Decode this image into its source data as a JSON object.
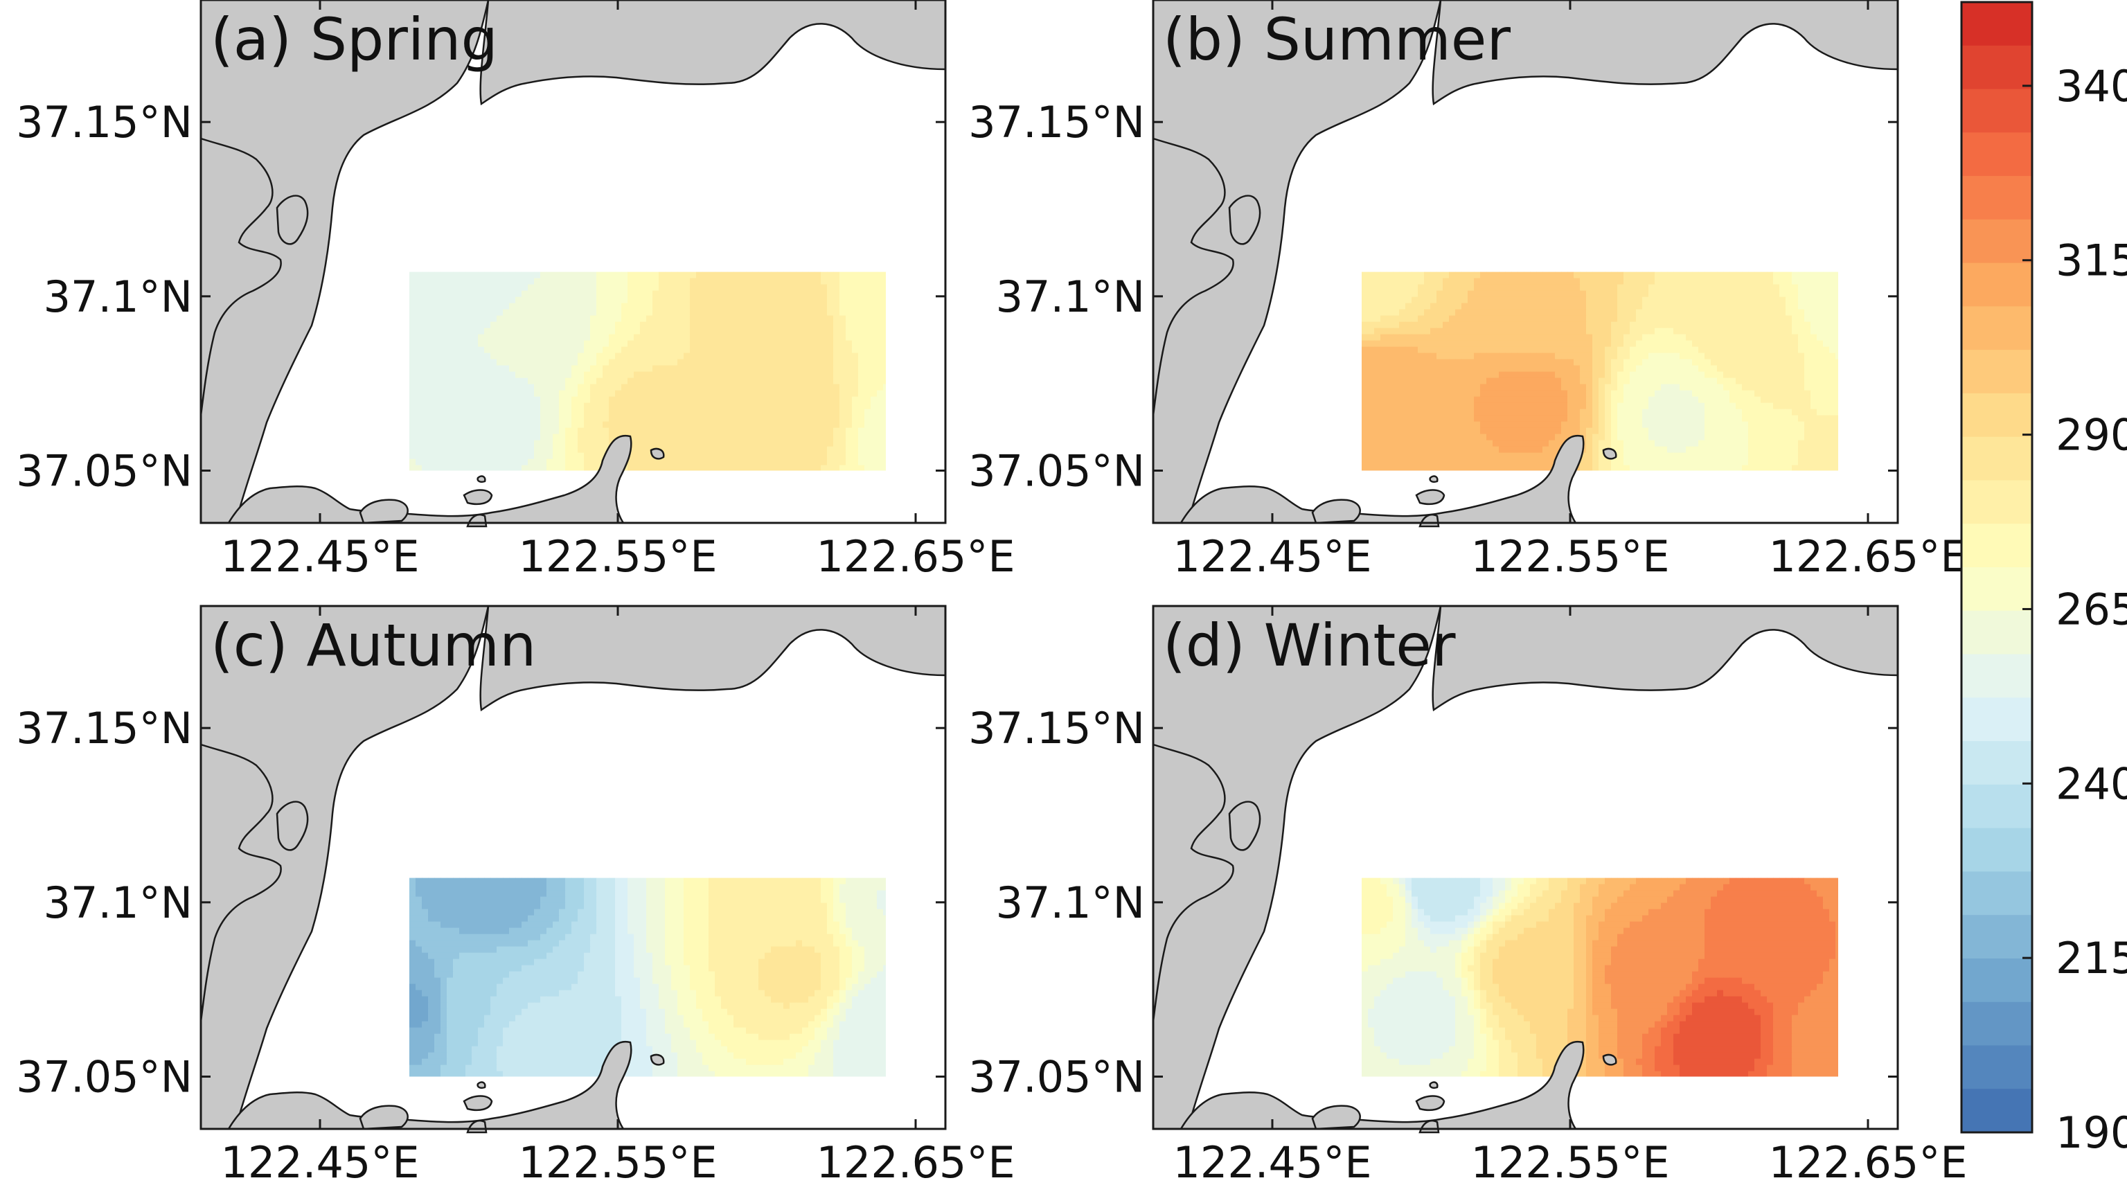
{
  "figure": {
    "panels": [
      {
        "id": "spring",
        "title": "(a) Spring",
        "lat_ticks": [
          "37.15°N",
          "37.1°N",
          "37.05°N"
        ],
        "lon_ticks": [
          "122.45°E",
          "122.55°E",
          "122.65°E"
        ],
        "base_value": 280,
        "field_hotspots": [
          {
            "lon": 122.505,
            "lat": 37.104,
            "value": 253
          },
          {
            "lon": 122.504,
            "lat": 37.068,
            "value": 252
          },
          {
            "lon": 122.52,
            "lat": 37.09,
            "value": 262
          },
          {
            "lon": 122.56,
            "lat": 37.065,
            "value": 285
          },
          {
            "lon": 122.605,
            "lat": 37.095,
            "value": 290
          },
          {
            "lon": 122.61,
            "lat": 37.065,
            "value": 287
          },
          {
            "lon": 122.645,
            "lat": 37.06,
            "value": 268
          },
          {
            "lon": 122.64,
            "lat": 37.1,
            "value": 272
          }
        ]
      },
      {
        "id": "summer",
        "title": "(b) Summer",
        "lat_ticks": [
          "37.15°N",
          "37.1°N",
          "37.05°N"
        ],
        "lon_ticks": [
          "122.45°E",
          "122.55°E",
          "122.65°E"
        ],
        "base_value": 286,
        "field_hotspots": [
          {
            "lon": 122.486,
            "lat": 37.072,
            "value": 309
          },
          {
            "lon": 122.535,
            "lat": 37.07,
            "value": 312
          },
          {
            "lon": 122.535,
            "lat": 37.095,
            "value": 298
          },
          {
            "lon": 122.585,
            "lat": 37.066,
            "value": 264
          },
          {
            "lon": 122.61,
            "lat": 37.09,
            "value": 282
          },
          {
            "lon": 122.64,
            "lat": 37.1,
            "value": 268
          },
          {
            "lon": 122.48,
            "lat": 37.105,
            "value": 280
          }
        ]
      },
      {
        "id": "autumn",
        "title": "(c) Autumn",
        "lat_ticks": [
          "37.15°N",
          "37.1°N",
          "37.05°N"
        ],
        "lon_ticks": [
          "122.45°E",
          "122.55°E",
          "122.65°E"
        ],
        "base_value": 258,
        "field_hotspots": [
          {
            "lon": 122.483,
            "lat": 37.07,
            "value": 212
          },
          {
            "lon": 122.505,
            "lat": 37.105,
            "value": 215
          },
          {
            "lon": 122.5,
            "lat": 37.07,
            "value": 232
          },
          {
            "lon": 122.52,
            "lat": 37.06,
            "value": 240
          },
          {
            "lon": 122.61,
            "lat": 37.08,
            "value": 285
          },
          {
            "lon": 122.605,
            "lat": 37.1,
            "value": 282
          },
          {
            "lon": 122.64,
            "lat": 37.065,
            "value": 252
          },
          {
            "lon": 122.64,
            "lat": 37.1,
            "value": 258
          }
        ]
      },
      {
        "id": "winter",
        "title": "(d) Winter",
        "lat_ticks": [
          "37.15°N",
          "37.1°N",
          "37.05°N"
        ],
        "lon_ticks": [
          "122.45°E",
          "122.55°E",
          "122.65°E"
        ],
        "base_value": 292,
        "field_hotspots": [
          {
            "lon": 122.505,
            "lat": 37.105,
            "value": 240
          },
          {
            "lon": 122.5,
            "lat": 37.068,
            "value": 256
          },
          {
            "lon": 122.485,
            "lat": 37.1,
            "value": 272
          },
          {
            "lon": 122.535,
            "lat": 37.08,
            "value": 292
          },
          {
            "lon": 122.575,
            "lat": 37.08,
            "value": 318
          },
          {
            "lon": 122.6,
            "lat": 37.062,
            "value": 340
          },
          {
            "lon": 122.615,
            "lat": 37.09,
            "value": 326
          },
          {
            "lon": 122.635,
            "lat": 37.06,
            "value": 322
          }
        ]
      }
    ],
    "colorbar": {
      "min": 190,
      "max": 352,
      "tick_values": [
        190,
        215,
        240,
        265,
        290,
        315,
        340
      ],
      "tick_labels": [
        "190",
        "215",
        "240",
        "265",
        "290",
        "315",
        "340"
      ],
      "colors": [
        "#4575b4",
        "#74a9cf",
        "#abd9e9",
        "#e0f3f8",
        "#ffffbf",
        "#fee090",
        "#fdae61",
        "#f46d43",
        "#d73027"
      ]
    },
    "colors": {
      "land": "#c8c8c8",
      "coastline": "#1a1a1a",
      "sea": "#ffffff",
      "frame": "#1a1a1a"
    }
  }
}
